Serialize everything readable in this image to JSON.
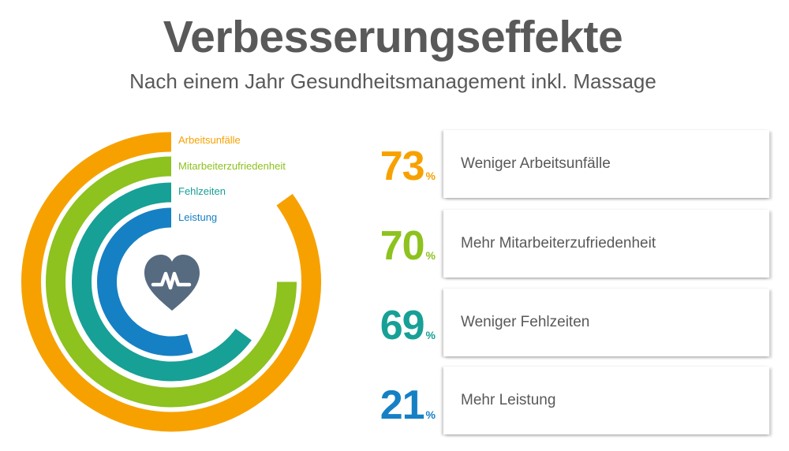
{
  "header": {
    "title": "Verbesserungseffekte",
    "subtitle": "Nach einem Jahr Gesundheitsmanagement inkl. Massage"
  },
  "center_icon": "heart-pulse-icon",
  "rings": [
    {
      "label": "Arbeitsunfälle",
      "color": "#f7a100",
      "value": 73,
      "sweep_deg": 306
    },
    {
      "label": "Mitarbeiterzufriedenheit",
      "color": "#8dc21f",
      "value": 70,
      "sweep_deg": 270
    },
    {
      "label": "Fehlzeiten",
      "color": "#17a096",
      "value": 69,
      "sweep_deg": 234
    },
    {
      "label": "Leistung",
      "color": "#1680c4",
      "value": 21,
      "sweep_deg": 197
    }
  ],
  "stats": [
    {
      "value": "73",
      "unit": "%",
      "text": "Weniger Arbeitsunfälle",
      "color": "#f7a100"
    },
    {
      "value": "70",
      "unit": "%",
      "text": "Mehr Mitarbeiterzufriedenheit",
      "color": "#8dc21f"
    },
    {
      "value": "69",
      "unit": "%",
      "text": "Weniger Fehlzeiten",
      "color": "#17a096"
    },
    {
      "value": "21",
      "unit": "%",
      "text": "Mehr Leistung",
      "color": "#1680c4"
    }
  ],
  "chart_data": {
    "type": "radial-bar",
    "title": "Verbesserungseffekte",
    "subtitle": "Nach einem Jahr Gesundheitsmanagement inkl. Massage",
    "categories": [
      "Arbeitsunfälle",
      "Mitarbeiterzufriedenheit",
      "Fehlzeiten",
      "Leistung"
    ],
    "values": [
      73,
      70,
      69,
      21
    ],
    "unit": "%",
    "descriptions": [
      "Weniger Arbeitsunfälle",
      "Mehr Mitarbeiterzufriedenheit",
      "Weniger Fehlzeiten",
      "Mehr Leistung"
    ],
    "colors": [
      "#f7a100",
      "#8dc21f",
      "#17a096",
      "#1680c4"
    ],
    "legend_position": "inline-top-of-rings"
  }
}
